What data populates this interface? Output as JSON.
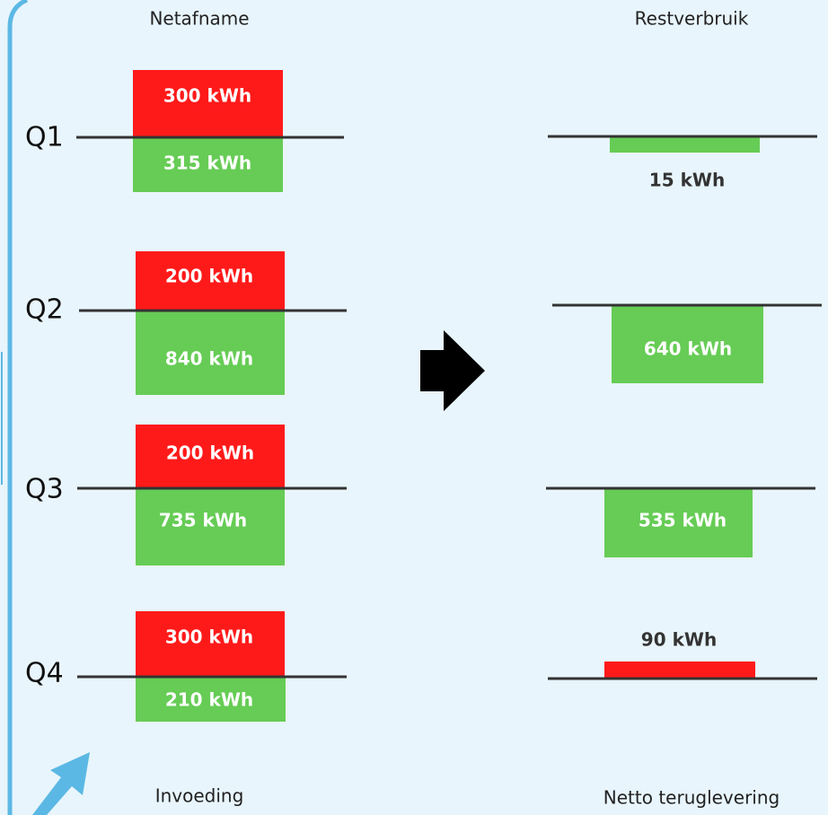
{
  "headers": {
    "left": "Netafname",
    "right": "Restverbruik"
  },
  "footers": {
    "left": "Invoeding",
    "right": "Netto teruglevering"
  },
  "quarters": [
    {
      "label": "Q1",
      "netafname": "300 kWh",
      "invoeding": "315 kWh",
      "rest": "15 kWh"
    },
    {
      "label": "Q2",
      "netafname": "200 kWh",
      "invoeding": "840 kWh",
      "rest": "640 kWh"
    },
    {
      "label": "Q3",
      "netafname": "200 kWh",
      "invoeding": "735 kWh",
      "rest": "535 kWh"
    },
    {
      "label": "Q4",
      "netafname": "300 kWh",
      "invoeding": "210 kWh",
      "rest": "90 kWh"
    }
  ]
}
